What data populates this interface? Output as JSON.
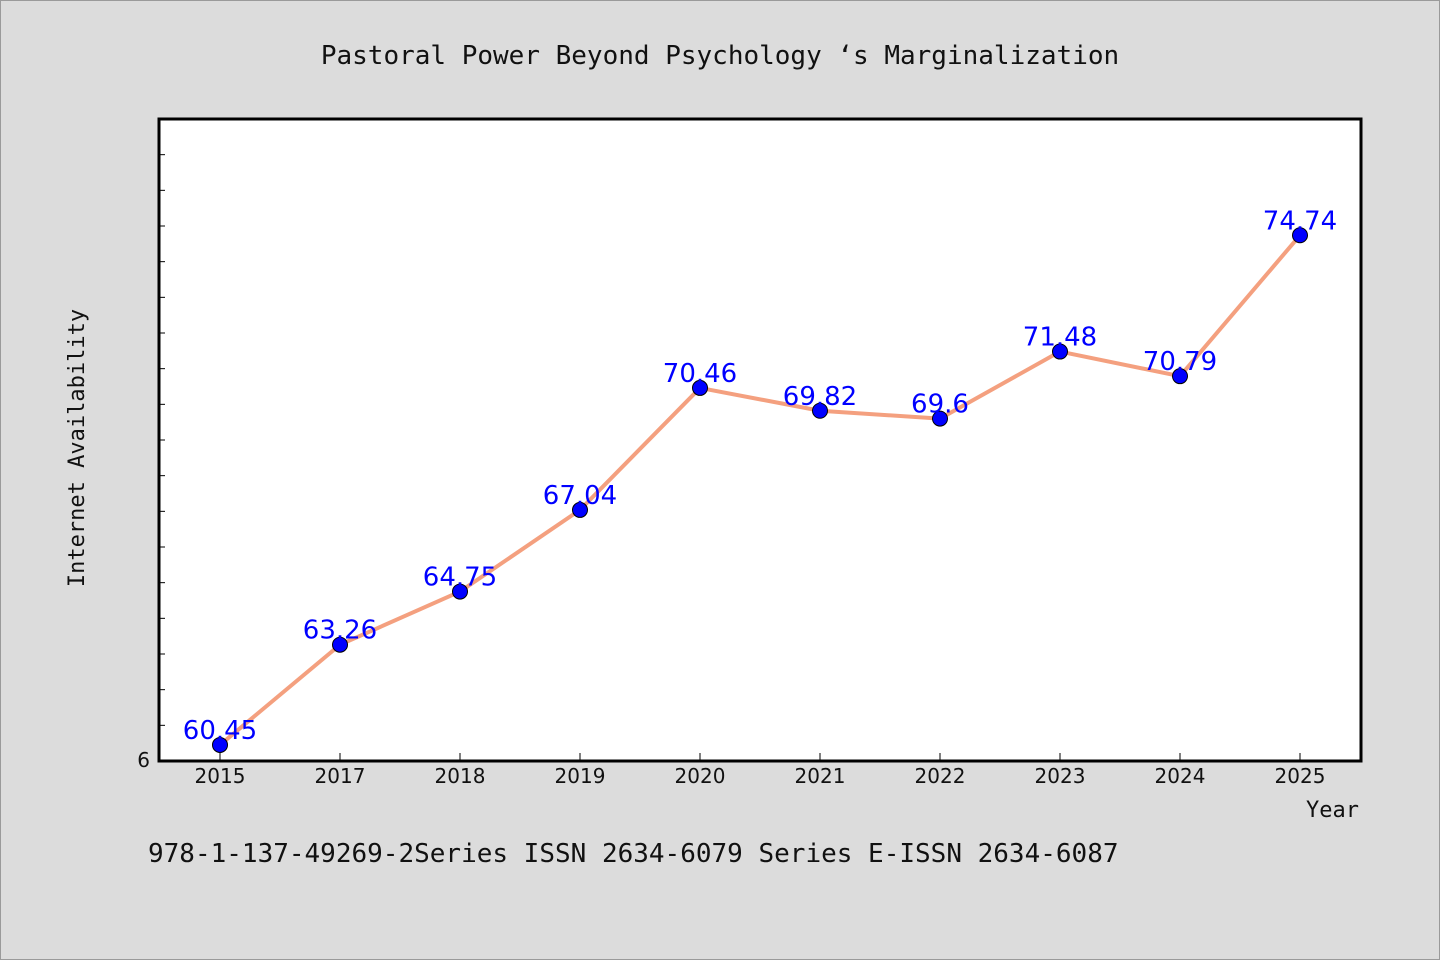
{
  "chart_data": {
    "type": "line",
    "title": "Pastoral Power Beyond Psychology ‘s Marginalization",
    "xlabel": "Year",
    "ylabel": "Internet Availability",
    "categories": [
      "2015",
      "2017",
      "2018",
      "2019",
      "2020",
      "2021",
      "2022",
      "2023",
      "2024",
      "2025"
    ],
    "series": [
      {
        "values": [
          60.45,
          63.26,
          64.75,
          67.04,
          70.46,
          69.82,
          69.6,
          71.48,
          70.79,
          74.74
        ],
        "labels": [
          "60.45",
          "63.26",
          "64.75",
          "67.04",
          "70.46",
          "69.82",
          "69.6",
          "71.48",
          "70.79",
          "74.74"
        ]
      }
    ],
    "y_tick_labels": [
      "6"
    ],
    "ylim": [
      60,
      78
    ],
    "grid": false,
    "colors": {
      "line": "#f4a07f",
      "marker": "#0000ff",
      "label": "#0000ff",
      "plot_background": "#ffffff",
      "page_background": "#dcdcdc"
    }
  },
  "footer": {
    "text": "978-1-137-49269-2Series ISSN 2634-6079 Series E-ISSN 2634-6087"
  }
}
